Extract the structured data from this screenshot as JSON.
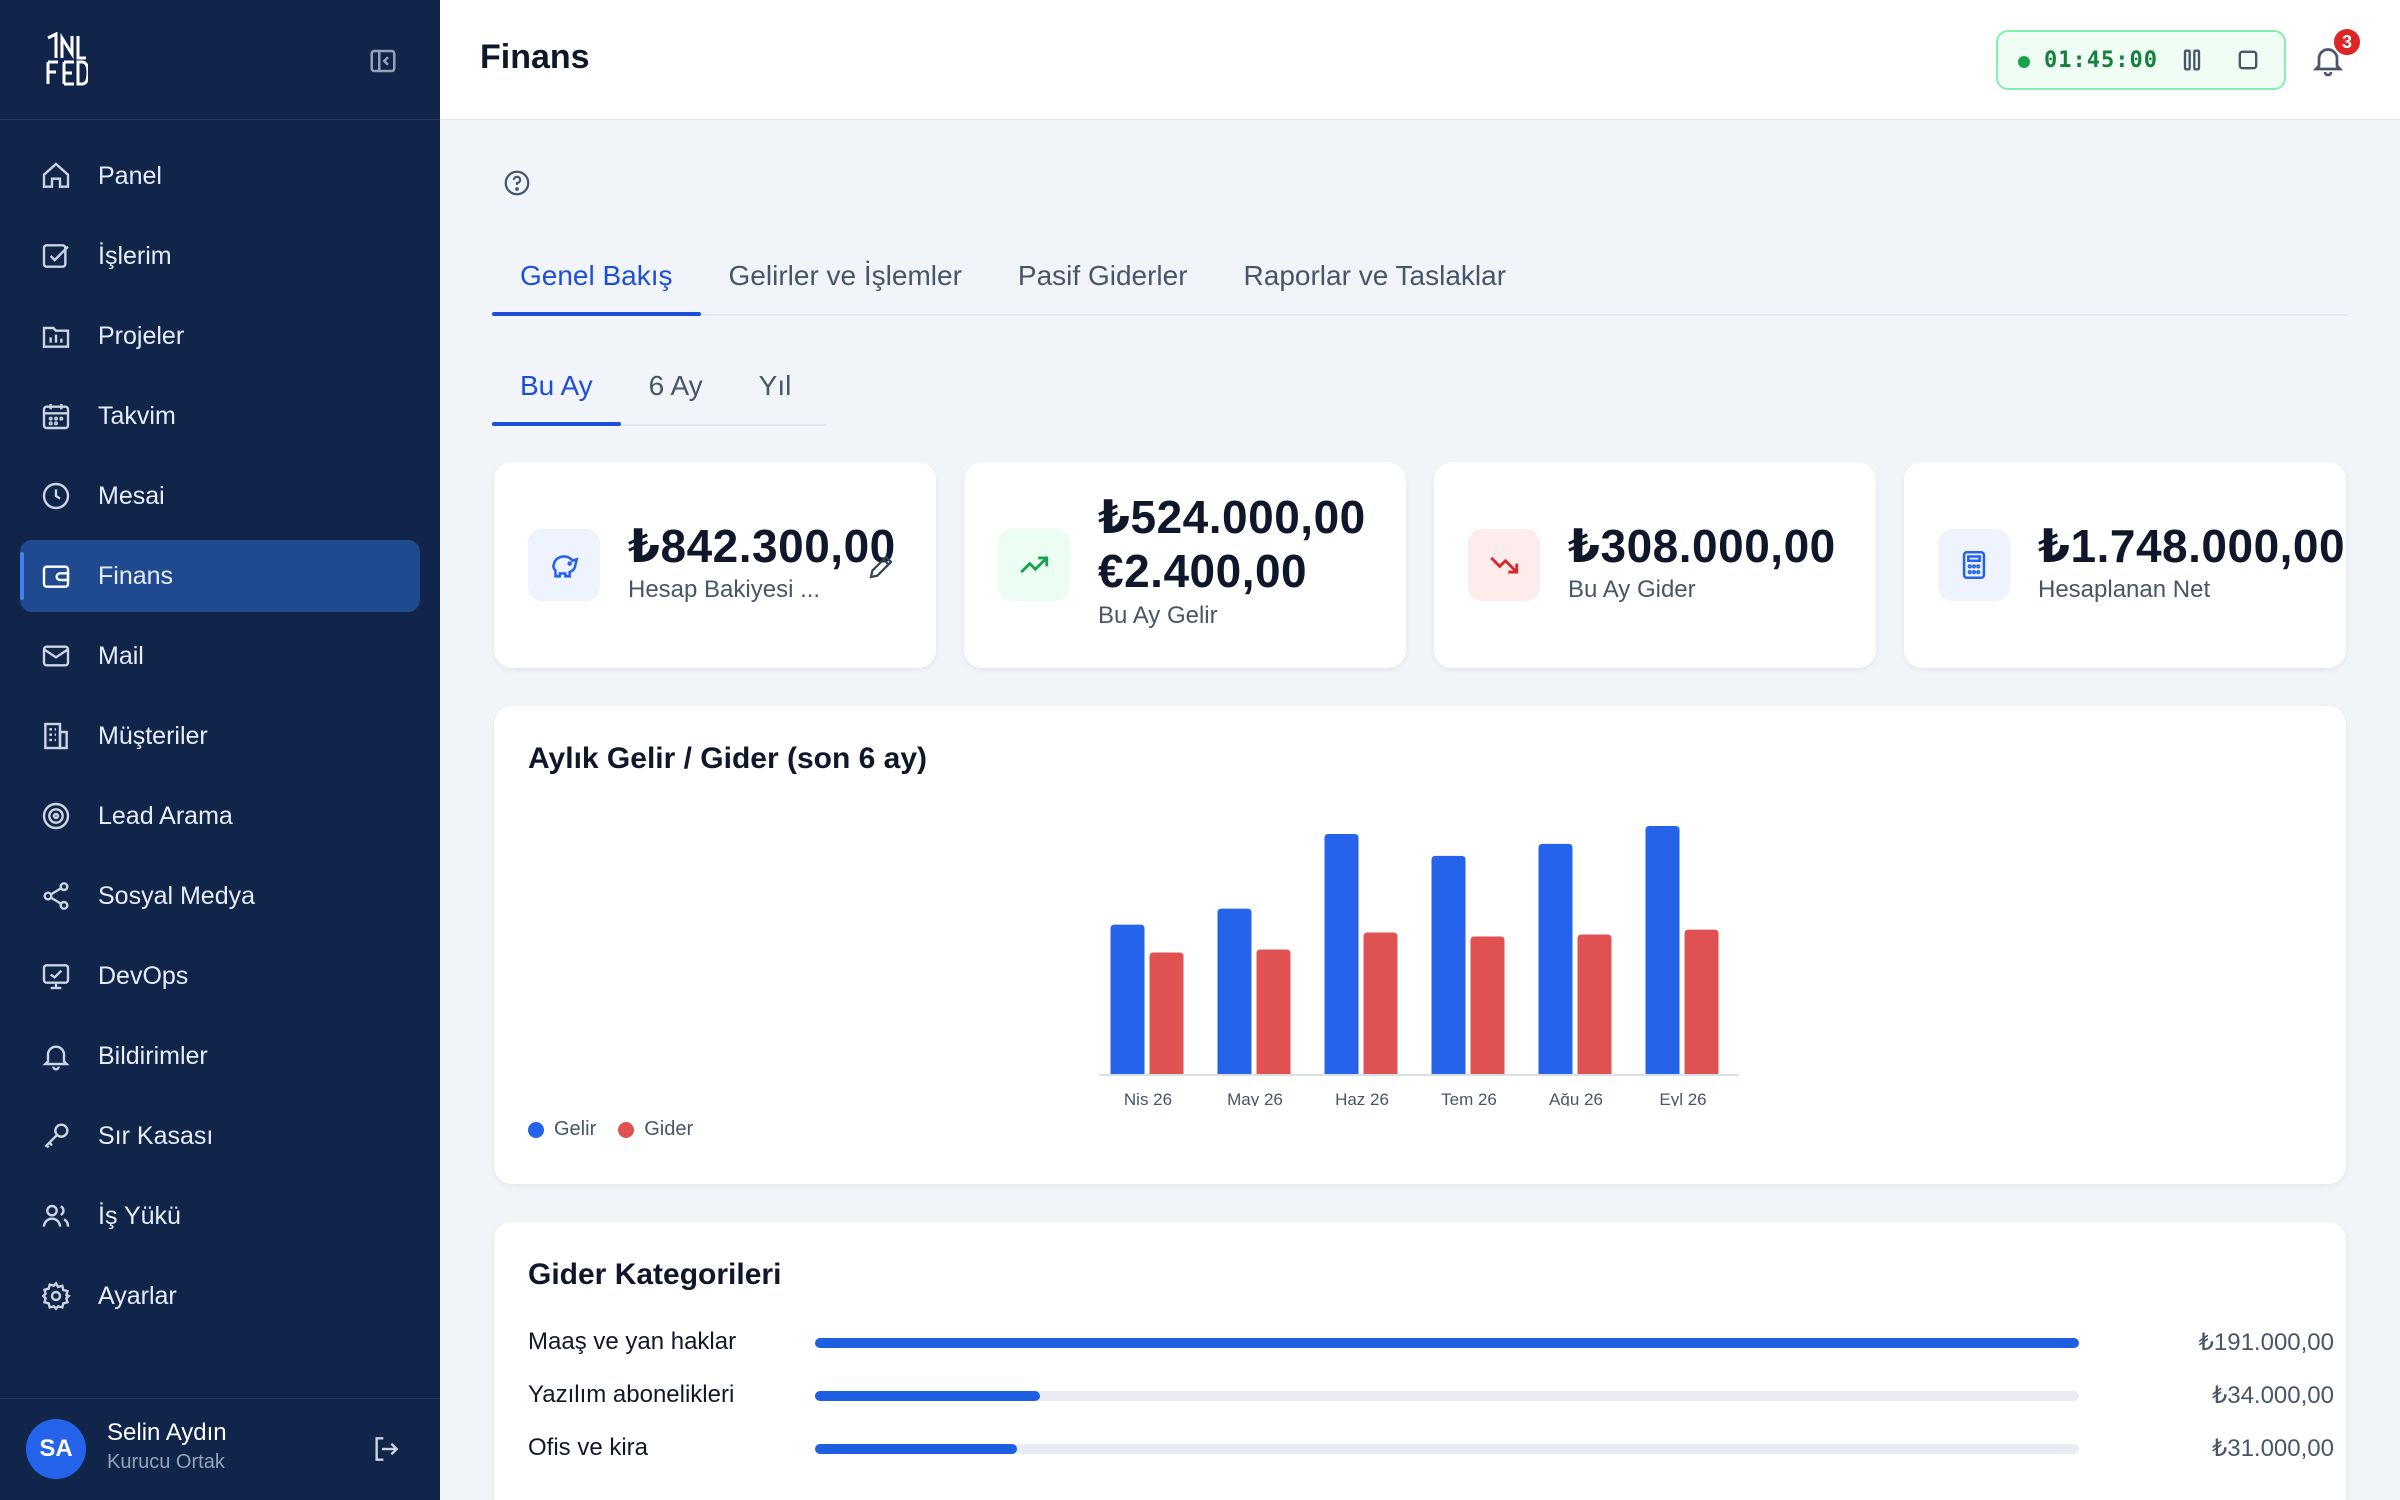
{
  "app": {
    "page_title": "Finans"
  },
  "sidebar": {
    "items": [
      {
        "label": "Panel",
        "icon": "home-icon",
        "active": false
      },
      {
        "label": "İşlerim",
        "icon": "checkbox-icon",
        "active": false
      },
      {
        "label": "Projeler",
        "icon": "folder-chart-icon",
        "active": false
      },
      {
        "label": "Takvim",
        "icon": "calendar-icon",
        "active": false
      },
      {
        "label": "Mesai",
        "icon": "clock-icon",
        "active": false
      },
      {
        "label": "Finans",
        "icon": "wallet-icon",
        "active": true
      },
      {
        "label": "Mail",
        "icon": "mail-icon",
        "active": false
      },
      {
        "label": "Müşteriler",
        "icon": "building-icon",
        "active": false
      },
      {
        "label": "Lead Arama",
        "icon": "target-icon",
        "active": false
      },
      {
        "label": "Sosyal Medya",
        "icon": "share-icon",
        "active": false
      },
      {
        "label": "DevOps",
        "icon": "monitor-icon",
        "active": false
      },
      {
        "label": "Bildirimler",
        "icon": "bell-icon",
        "active": false
      },
      {
        "label": "Sır Kasası",
        "icon": "key-icon",
        "active": false
      },
      {
        "label": "İş Yükü",
        "icon": "users-icon",
        "active": false
      },
      {
        "label": "Ayarlar",
        "icon": "gear-icon",
        "active": false
      }
    ],
    "user": {
      "initials": "SA",
      "name": "Selin Aydın",
      "role": "Kurucu Ortak"
    }
  },
  "topbar": {
    "timer": "01:45:00",
    "notification_count": "3"
  },
  "tabs": [
    {
      "label": "Genel Bakış",
      "active": true
    },
    {
      "label": "Gelirler ve İşlemler",
      "active": false
    },
    {
      "label": "Pasif Giderler",
      "active": false
    },
    {
      "label": "Raporlar ve Taslaklar",
      "active": false
    }
  ],
  "period_tabs": [
    {
      "label": "Bu Ay",
      "active": true
    },
    {
      "label": "6 Ay",
      "active": false
    },
    {
      "label": "Yıl",
      "active": false
    }
  ],
  "stats": [
    {
      "values": [
        "₺842.300,00"
      ],
      "label": "Hesap Bakiyesi ...",
      "icon": "piggy-bank-icon",
      "accent": "#2563eb",
      "bg": "#eef3fd"
    },
    {
      "values": [
        "₺524.000,00",
        "€2.400,00"
      ],
      "label": "Bu Ay Gelir",
      "icon": "trending-up-icon",
      "accent": "#16a34a",
      "bg": "#ecfdf3"
    },
    {
      "values": [
        "₺308.000,00"
      ],
      "label": "Bu Ay Gider",
      "icon": "trending-down-icon",
      "accent": "#dc2626",
      "bg": "#fdecec"
    },
    {
      "values": [
        "₺1.748.000,00"
      ],
      "label": "Hesaplanan Net",
      "icon": "calculator-icon",
      "accent": "#2563eb",
      "bg": "#eef3fd"
    }
  ],
  "chart_section": {
    "title": "Aylık Gelir / Gider (son 6 ay)"
  },
  "chart_data": {
    "type": "bar",
    "categories": [
      "Nis 26",
      "May 26",
      "Haz 26",
      "Tem 26",
      "Ağu 26",
      "Eyl 26"
    ],
    "series": [
      {
        "name": "Gelir",
        "color": "#2563eb",
        "values": [
          300,
          332,
          482,
          438,
          462,
          498
        ]
      },
      {
        "name": "Gider",
        "color": "#e05252",
        "values": [
          244,
          250,
          284,
          276,
          280,
          290
        ]
      }
    ],
    "ylim": [
      0,
      510
    ],
    "grid": false,
    "legend": "bottom-left"
  },
  "categories_section": {
    "title": "Gider Kategorileri",
    "items": [
      {
        "label": "Maaş ve yan haklar",
        "amount": "₺191.000,00",
        "ratio": 1.0
      },
      {
        "label": "Yazılım abonelikleri",
        "amount": "₺34.000,00",
        "ratio": 0.178
      },
      {
        "label": "Ofis ve kira",
        "amount": "₺31.000,00",
        "ratio": 0.16
      }
    ]
  }
}
